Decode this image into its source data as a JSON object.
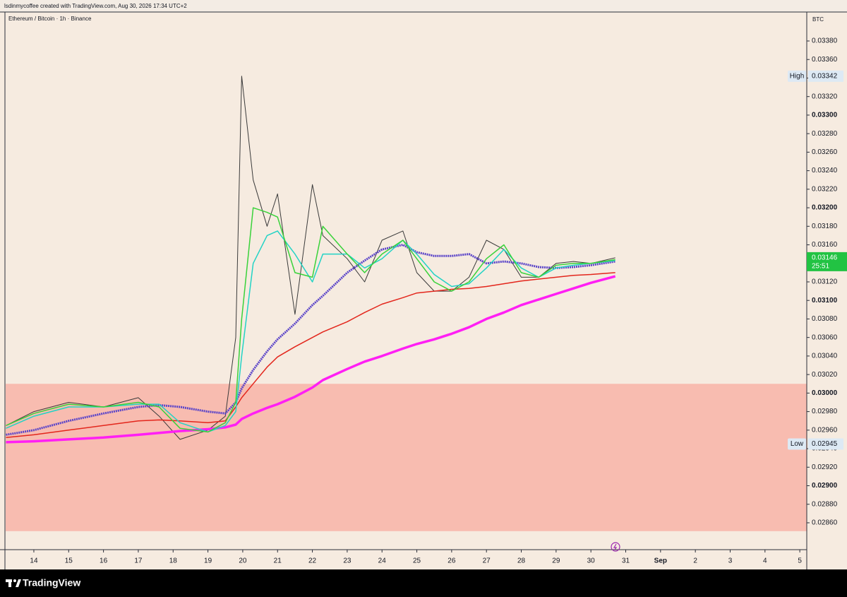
{
  "header": {
    "text": "lsdinmycoffee created with TradingView.com, Aug 30, 2026 17:34 UTC+2"
  },
  "chart_data": {
    "type": "line",
    "title": "Ethereum / Bitcoin · 1h · Binance",
    "currency": "BTC",
    "background": "#f6ebe0",
    "zone": {
      "from": 0.02851,
      "to": 0.0301,
      "color": "#f8bcb0"
    },
    "x": [
      13.2,
      14,
      15,
      16,
      17,
      17.6,
      18.2,
      19,
      19.5,
      19.8,
      19.97,
      20.3,
      20.7,
      21,
      21.5,
      22,
      22.3,
      23,
      23.5,
      24,
      24.6,
      25,
      25.5,
      26,
      26.5,
      27,
      27.5,
      28,
      28.5,
      29,
      29.5,
      30,
      30.7
    ],
    "series": [
      {
        "color": "#3a3a3a",
        "values": [
          0.02965,
          0.0298,
          0.0299,
          0.02985,
          0.02995,
          0.02975,
          0.0295,
          0.0296,
          0.02975,
          0.0306,
          0.03342,
          0.0323,
          0.0318,
          0.03215,
          0.03085,
          0.03225,
          0.0317,
          0.03145,
          0.0312,
          0.03165,
          0.03175,
          0.0313,
          0.0311,
          0.0311,
          0.03125,
          0.03165,
          0.03155,
          0.03125,
          0.03125,
          0.0314,
          0.03142,
          0.0314,
          0.03146
        ]
      },
      {
        "color": "#ff1ff4",
        "values": [
          0.02947,
          0.02948,
          0.0295,
          0.02952,
          0.02955,
          0.02957,
          0.02959,
          0.02961,
          0.02963,
          0.02966,
          0.02972,
          0.02978,
          0.02984,
          0.02988,
          0.02996,
          0.03006,
          0.03014,
          0.03026,
          0.03034,
          0.0304,
          0.03048,
          0.03053,
          0.03058,
          0.03064,
          0.03071,
          0.0308,
          0.03087,
          0.03095,
          0.03101,
          0.03107,
          0.03113,
          0.03119,
          0.03126
        ]
      },
      {
        "color": "#e3261c",
        "values": [
          0.02952,
          0.02955,
          0.0296,
          0.02965,
          0.0297,
          0.02971,
          0.0297,
          0.02968,
          0.0297,
          0.02985,
          0.02995,
          0.0301,
          0.03028,
          0.03039,
          0.0305,
          0.0306,
          0.03066,
          0.03077,
          0.03087,
          0.03096,
          0.03103,
          0.03108,
          0.0311,
          0.03112,
          0.03113,
          0.03115,
          0.03118,
          0.03121,
          0.03123,
          0.03125,
          0.03127,
          0.03128,
          0.0313
        ]
      },
      {
        "color": "#5a44c8",
        "values": [
          0.02955,
          0.0296,
          0.0297,
          0.02978,
          0.02985,
          0.02987,
          0.02985,
          0.0298,
          0.02978,
          0.0299,
          0.03005,
          0.03025,
          0.03045,
          0.03058,
          0.03075,
          0.03095,
          0.03105,
          0.0313,
          0.03143,
          0.03155,
          0.0316,
          0.03152,
          0.03148,
          0.03148,
          0.0315,
          0.0314,
          0.03142,
          0.0314,
          0.03136,
          0.03135,
          0.03136,
          0.03138,
          0.03142
        ]
      },
      {
        "color": "#22d3c5",
        "values": [
          0.02962,
          0.02975,
          0.02985,
          0.02985,
          0.02988,
          0.02988,
          0.02968,
          0.02958,
          0.02965,
          0.0298,
          0.0304,
          0.0314,
          0.0317,
          0.03175,
          0.0315,
          0.0312,
          0.0315,
          0.0315,
          0.03135,
          0.03145,
          0.03165,
          0.0315,
          0.03128,
          0.03115,
          0.03118,
          0.03135,
          0.03155,
          0.03135,
          0.03125,
          0.03135,
          0.03138,
          0.0314,
          0.03143
        ]
      },
      {
        "color": "#39d23a",
        "values": [
          0.02965,
          0.02978,
          0.02988,
          0.02985,
          0.0299,
          0.02985,
          0.02962,
          0.02958,
          0.02968,
          0.0299,
          0.0308,
          0.032,
          0.03195,
          0.0319,
          0.0313,
          0.03125,
          0.0318,
          0.0315,
          0.0313,
          0.0315,
          0.03165,
          0.03145,
          0.0312,
          0.0311,
          0.0312,
          0.03145,
          0.0316,
          0.0313,
          0.03125,
          0.03138,
          0.0314,
          0.0314,
          0.03144
        ]
      }
    ],
    "high": {
      "label": "High",
      "value": 0.03342
    },
    "low": {
      "label": "Low",
      "value": 0.02945
    },
    "last": {
      "value": 0.03146,
      "countdown": "25:51",
      "color": "#22c343"
    },
    "xlim": [
      13.19,
      36.2
    ],
    "xticks": [
      14,
      15,
      16,
      17,
      18,
      19,
      20,
      21,
      22,
      23,
      24,
      25,
      26,
      27,
      28,
      29,
      30,
      31,
      {
        "value": 32,
        "label": "Sep"
      },
      {
        "value": 33,
        "label": "2"
      },
      {
        "value": 34,
        "label": "3"
      },
      {
        "value": 35,
        "label": "4"
      },
      {
        "value": 36,
        "label": "5"
      }
    ],
    "ylim": [
      0.02831,
      0.034105
    ],
    "yticks": [
      {
        "value": 0.0338,
        "label": "0.03380"
      },
      {
        "value": 0.0336,
        "label": "0.03360"
      },
      {
        "value": 0.0334,
        "label": "0.03340"
      },
      {
        "value": 0.0332,
        "label": "0.03320"
      },
      {
        "value": 0.033,
        "label": "0.03300"
      },
      {
        "value": 0.0328,
        "label": "0.03280"
      },
      {
        "value": 0.0326,
        "label": "0.03260"
      },
      {
        "value": 0.0324,
        "label": "0.03240"
      },
      {
        "value": 0.0322,
        "label": "0.03220"
      },
      {
        "value": 0.032,
        "label": "0.03200"
      },
      {
        "value": 0.0318,
        "label": "0.03180"
      },
      {
        "value": 0.0316,
        "label": "0.03160"
      },
      {
        "value": 0.0314,
        "label": "0.03140"
      },
      {
        "value": 0.0312,
        "label": "0.03120"
      },
      {
        "value": 0.031,
        "label": "0.03100"
      },
      {
        "value": 0.0308,
        "label": "0.03080"
      },
      {
        "value": 0.0306,
        "label": "0.03060"
      },
      {
        "value": 0.0304,
        "label": "0.03040"
      },
      {
        "value": 0.0302,
        "label": "0.03020"
      },
      {
        "value": 0.03,
        "label": "0.03000"
      },
      {
        "value": 0.0298,
        "label": "0.02980"
      },
      {
        "value": 0.0296,
        "label": "0.02960"
      },
      {
        "value": 0.0294,
        "label": "0.02940"
      },
      {
        "value": 0.0292,
        "label": "0.02920"
      },
      {
        "value": 0.029,
        "label": "0.02900"
      },
      {
        "value": 0.0288,
        "label": "0.02880"
      },
      {
        "value": 0.0286,
        "label": "0.02860"
      }
    ]
  },
  "footer": {
    "logo": "TradingView"
  }
}
